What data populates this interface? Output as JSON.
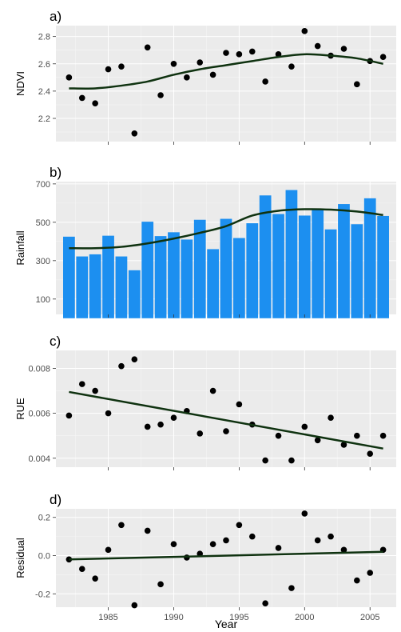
{
  "x_title": "Year",
  "x_ticks": [
    1985,
    1990,
    1995,
    2000,
    2005
  ],
  "x_range": [
    1981,
    2007
  ],
  "colors": {
    "points": "#000000",
    "bars": "#1c8ff0",
    "trend": "#0f3210",
    "panel": "#ebebeb"
  },
  "chart_data": [
    {
      "type": "scatter",
      "panel_label": "a)",
      "ylabel": "NDVI",
      "ylim": [
        2.03,
        2.88
      ],
      "y_ticks": [
        2.2,
        2.4,
        2.6,
        2.8
      ],
      "y_tick_labels": [
        "2.2",
        "2.4",
        "2.6",
        "2.8"
      ],
      "grid": true,
      "x": [
        1982,
        1983,
        1984,
        1985,
        1986,
        1987,
        1988,
        1989,
        1990,
        1991,
        1992,
        1993,
        1994,
        1995,
        1996,
        1997,
        1998,
        1999,
        2000,
        2001,
        2002,
        2003,
        2004,
        2005,
        2006
      ],
      "y": [
        2.5,
        2.35,
        2.31,
        2.56,
        2.58,
        2.09,
        2.72,
        2.37,
        2.6,
        2.5,
        2.61,
        2.52,
        2.68,
        2.67,
        2.69,
        2.47,
        2.67,
        2.58,
        2.84,
        2.73,
        2.66,
        2.71,
        2.45,
        2.62,
        2.65
      ],
      "trend": {
        "type": "smooth",
        "x": [
          1982,
          1984,
          1986,
          1988,
          1990,
          1992,
          1994,
          1996,
          1998,
          2000,
          2002,
          2004,
          2006
        ],
        "y": [
          2.42,
          2.42,
          2.44,
          2.47,
          2.52,
          2.56,
          2.59,
          2.62,
          2.65,
          2.67,
          2.66,
          2.64,
          2.6
        ]
      }
    },
    {
      "type": "bar",
      "panel_label": "b)",
      "ylabel": "Rainfall",
      "ylim": [
        20,
        712
      ],
      "y_ticks": [
        100,
        300,
        500,
        700
      ],
      "y_tick_labels": [
        "100",
        "300",
        "500",
        "700"
      ],
      "grid": true,
      "bar_base": 0,
      "x": [
        1982,
        1983,
        1984,
        1985,
        1986,
        1987,
        1988,
        1989,
        1990,
        1991,
        1992,
        1993,
        1994,
        1995,
        1996,
        1997,
        1998,
        1999,
        2000,
        2001,
        2002,
        2003,
        2004,
        2005,
        2006
      ],
      "values": [
        425,
        322,
        333,
        430,
        322,
        250,
        503,
        428,
        448,
        410,
        513,
        360,
        518,
        418,
        495,
        640,
        543,
        668,
        535,
        568,
        463,
        595,
        490,
        625,
        533
      ],
      "trend": {
        "type": "smooth",
        "x": [
          1982,
          1984,
          1986,
          1988,
          1990,
          1992,
          1994,
          1996,
          1998,
          2000,
          2002,
          2004,
          2006
        ],
        "y": [
          365,
          365,
          372,
          390,
          415,
          445,
          480,
          535,
          560,
          568,
          566,
          556,
          538
        ]
      }
    },
    {
      "type": "scatter",
      "panel_label": "c)",
      "ylabel": "RUE",
      "ylim": [
        0.0036,
        0.0088
      ],
      "y_ticks": [
        0.004,
        0.006,
        0.008
      ],
      "y_tick_labels": [
        "0.004",
        "0.006",
        "0.008"
      ],
      "grid": true,
      "x": [
        1982,
        1983,
        1984,
        1985,
        1986,
        1987,
        1988,
        1989,
        1990,
        1991,
        1992,
        1993,
        1994,
        1995,
        1996,
        1997,
        1998,
        1999,
        2000,
        2001,
        2002,
        2003,
        2004,
        2005,
        2006
      ],
      "y": [
        0.0059,
        0.0073,
        0.007,
        0.006,
        0.0081,
        0.0084,
        0.0054,
        0.0055,
        0.0058,
        0.0061,
        0.0051,
        0.007,
        0.0052,
        0.0064,
        0.0055,
        0.0039,
        0.005,
        0.0039,
        0.0054,
        0.0048,
        0.0058,
        0.0046,
        0.005,
        0.0042,
        0.005
      ],
      "trend": {
        "type": "linear",
        "x": [
          1982,
          2006
        ],
        "y": [
          0.00695,
          0.00443
        ]
      }
    },
    {
      "type": "scatter",
      "panel_label": "d)",
      "ylabel": "Residual",
      "ylim": [
        -0.27,
        0.245
      ],
      "y_ticks": [
        -0.2,
        0.0,
        0.2
      ],
      "y_tick_labels": [
        "-0.2",
        "0.0",
        "0.2"
      ],
      "grid": true,
      "x": [
        1982,
        1983,
        1984,
        1985,
        1986,
        1987,
        1988,
        1989,
        1990,
        1991,
        1992,
        1993,
        1994,
        1995,
        1996,
        1997,
        1998,
        1999,
        2000,
        2001,
        2002,
        2003,
        2004,
        2005,
        2006
      ],
      "y": [
        -0.02,
        -0.07,
        -0.12,
        0.03,
        0.16,
        -0.26,
        0.13,
        -0.15,
        0.06,
        -0.01,
        0.01,
        0.06,
        0.08,
        0.16,
        0.1,
        -0.25,
        0.04,
        -0.17,
        0.22,
        0.08,
        0.1,
        0.03,
        -0.13,
        -0.09,
        0.03
      ],
      "trend": {
        "type": "linear",
        "x": [
          1982,
          2006
        ],
        "y": [
          -0.02,
          0.02
        ]
      }
    }
  ]
}
